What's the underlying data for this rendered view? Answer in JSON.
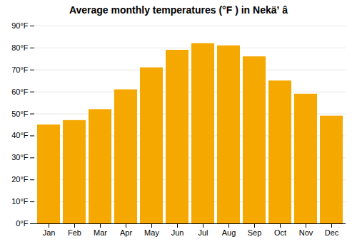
{
  "chart_data": {
    "type": "bar",
    "title": "Average monthly temperatures (°F ) in Nekäʼ â",
    "categories": [
      "Jan",
      "Feb",
      "Mar",
      "Apr",
      "May",
      "Jun",
      "Jul",
      "Aug",
      "Sep",
      "Oct",
      "Nov",
      "Dec"
    ],
    "values": [
      45,
      47,
      52,
      61,
      71,
      79,
      82,
      81,
      76,
      65,
      59,
      49
    ],
    "color": "#F5A800",
    "ylim": [
      0,
      90
    ],
    "yticks": [
      {
        "value": 0,
        "label": "0°F"
      },
      {
        "value": 10,
        "label": "10°F"
      },
      {
        "value": 20,
        "label": "20°F"
      },
      {
        "value": 30,
        "label": "30°F"
      },
      {
        "value": 40,
        "label": "40°F"
      },
      {
        "value": 50,
        "label": "50°F"
      },
      {
        "value": 60,
        "label": "60°F"
      },
      {
        "value": 70,
        "label": "70°F"
      },
      {
        "value": 80,
        "label": "80°F"
      },
      {
        "value": 90,
        "label": "90°F"
      }
    ],
    "grid": true
  }
}
